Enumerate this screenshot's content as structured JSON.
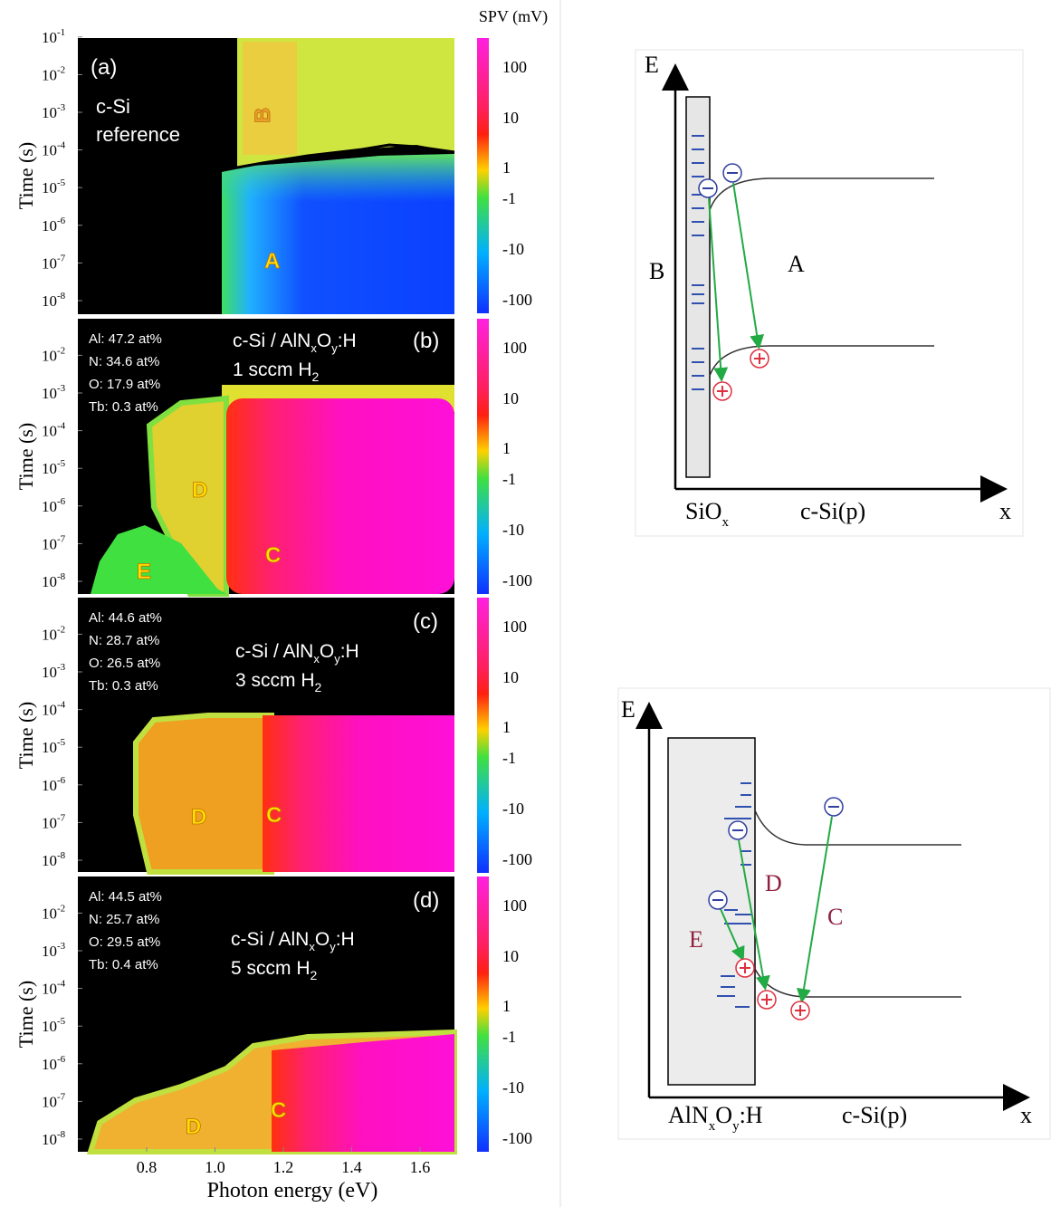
{
  "left_figure": {
    "colorbar_title": "SPV (mV)",
    "colorbar_ticks": [
      "100",
      "10",
      "1",
      "-1",
      "-10",
      "-100"
    ],
    "tick_base": "10",
    "y_label": "Time (s)",
    "x_label": "Photon energy (eV)",
    "x_ticks": [
      "0.8",
      "1.0",
      "1.2",
      "1.4",
      "1.6"
    ],
    "panels": [
      {
        "tag": "(a)",
        "y_tick_exponents": [
          "-1",
          "-2",
          "-3",
          "-4",
          "-5",
          "-6",
          "-7",
          "-8"
        ],
        "notes": [
          "c-Si",
          "reference"
        ],
        "regions": [
          "A",
          "B"
        ]
      },
      {
        "tag": "(b)",
        "y_tick_exponents": [
          "-2",
          "-3",
          "-4",
          "-5",
          "-6",
          "-7",
          "-8"
        ],
        "composition": [
          "Al: 47.2 at%",
          "N: 34.6 at%",
          "O: 17.9 at%",
          "Tb: 0.3 at%"
        ],
        "sample": [
          "c-Si / AlN",
          "x",
          "O",
          "y",
          ":H"
        ],
        "flow": [
          "1 sccm H",
          "2"
        ],
        "regions": [
          "D",
          "C",
          "E"
        ]
      },
      {
        "tag": "(c)",
        "y_tick_exponents": [
          "-2",
          "-3",
          "-4",
          "-5",
          "-6",
          "-7",
          "-8"
        ],
        "composition": [
          "Al: 44.6 at%",
          "N: 28.7 at%",
          "O: 26.5 at%",
          "Tb: 0.3 at%"
        ],
        "sample": [
          "c-Si / AlN",
          "x",
          "O",
          "y",
          ":H"
        ],
        "flow": [
          "3 sccm H",
          "2"
        ],
        "regions": [
          "D",
          "C"
        ]
      },
      {
        "tag": "(d)",
        "y_tick_exponents": [
          "-2",
          "-3",
          "-4",
          "-5",
          "-6",
          "-7",
          "-8"
        ],
        "composition": [
          "Al: 44.5 at%",
          "N: 25.7 at%",
          "O: 29.5 at%",
          "Tb: 0.4 at%"
        ],
        "sample": [
          "c-Si / AlN",
          "x",
          "O",
          "y",
          ":H"
        ],
        "flow": [
          "5 sccm H",
          "2"
        ],
        "regions": [
          "D",
          "C"
        ]
      }
    ]
  },
  "top_diagram": {
    "axis_e": "E",
    "axis_x": "x",
    "labels": [
      "B",
      "A"
    ],
    "layer": [
      "SiO",
      "x"
    ],
    "substrate": "c-Si(p)"
  },
  "bottom_diagram": {
    "axis_e": "E",
    "axis_x": "x",
    "labels": [
      "D",
      "C",
      "E"
    ],
    "layer": [
      "AlN",
      "x",
      "O",
      "y",
      ":H"
    ],
    "substrate": "c-Si(p)"
  }
}
